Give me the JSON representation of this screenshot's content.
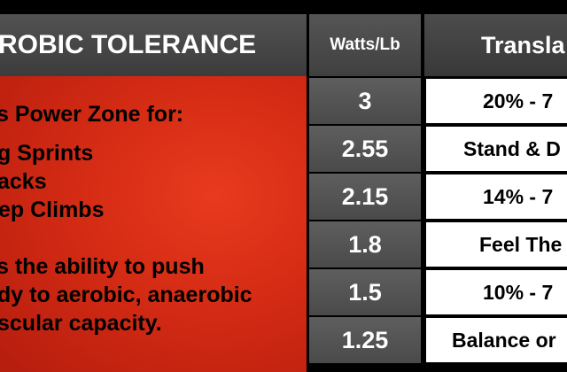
{
  "table": {
    "title": "ROBIC TOLERANCE",
    "watts_header": "Watts/Lb",
    "translation_header": "Transla",
    "description_lines": [
      "s Power Zone for:",
      "g Sprints",
      "acks",
      "ep Climbs",
      "s the ability to push",
      "dy to aerobic, anaerobic",
      "scular capacity."
    ],
    "rows": [
      {
        "watts": "3",
        "translation": "20% - 7"
      },
      {
        "watts": "2.55",
        "translation": "Stand & D"
      },
      {
        "watts": "2.15",
        "translation": "14% - 7"
      },
      {
        "watts": "1.8",
        "translation": "Feel The"
      },
      {
        "watts": "1.5",
        "translation": "10% - 7"
      },
      {
        "watts": "1.25",
        "translation": "Balance or"
      }
    ]
  },
  "colors": {
    "header_gray": "#474747",
    "panel_red": "#d42b14",
    "watts_gray": "#555555",
    "translation_bg": "#ffffff"
  }
}
